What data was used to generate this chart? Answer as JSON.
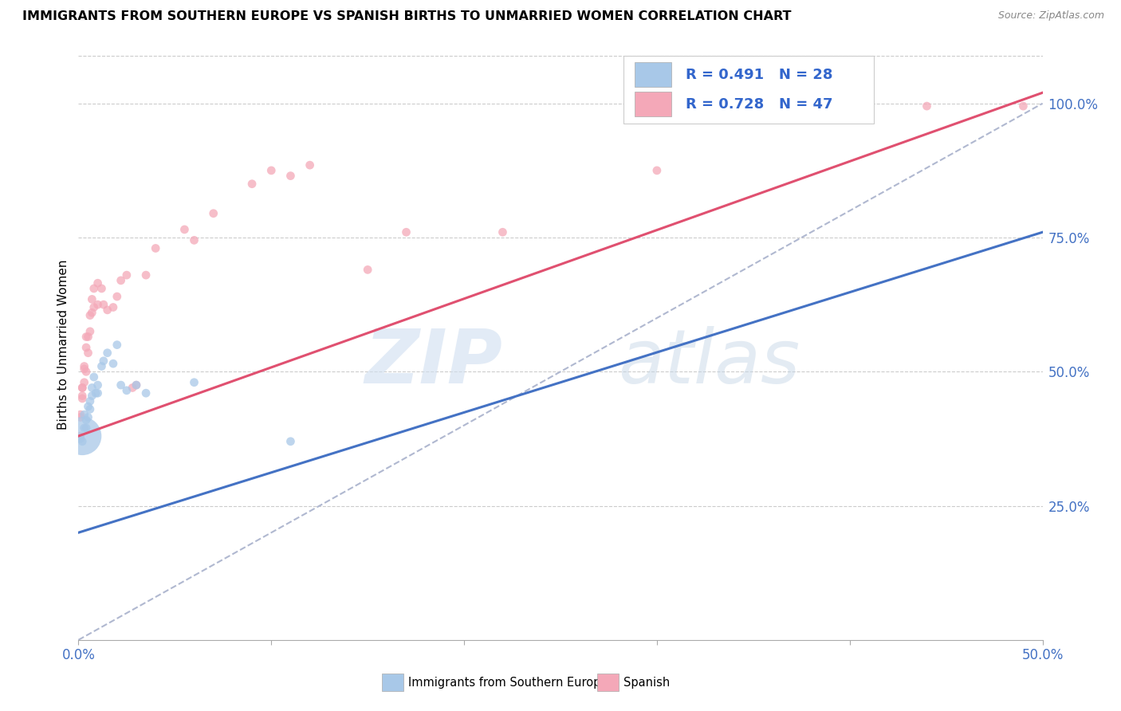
{
  "title": "IMMIGRANTS FROM SOUTHERN EUROPE VS SPANISH BIRTHS TO UNMARRIED WOMEN CORRELATION CHART",
  "source": "Source: ZipAtlas.com",
  "ylabel": "Births to Unmarried Women",
  "ylabel_ticks": [
    "25.0%",
    "50.0%",
    "75.0%",
    "100.0%"
  ],
  "ylabel_tick_vals": [
    0.25,
    0.5,
    0.75,
    1.0
  ],
  "xlim": [
    0.0,
    0.5
  ],
  "ylim": [
    0.0,
    1.1
  ],
  "legend1_R": "0.491",
  "legend1_N": "28",
  "legend2_R": "0.728",
  "legend2_N": "47",
  "blue_color": "#a8c8e8",
  "pink_color": "#f4a8b8",
  "blue_line_color": "#4472c4",
  "pink_line_color": "#e05070",
  "dashed_line_color": "#b0b8d0",
  "watermark_zip": "ZIP",
  "watermark_atlas": "atlas",
  "blue_scatter": [
    [
      0.001,
      0.375
    ],
    [
      0.002,
      0.37
    ],
    [
      0.003,
      0.395
    ],
    [
      0.003,
      0.42
    ],
    [
      0.004,
      0.41
    ],
    [
      0.004,
      0.395
    ],
    [
      0.005,
      0.415
    ],
    [
      0.005,
      0.435
    ],
    [
      0.006,
      0.43
    ],
    [
      0.006,
      0.445
    ],
    [
      0.007,
      0.455
    ],
    [
      0.007,
      0.47
    ],
    [
      0.008,
      0.49
    ],
    [
      0.009,
      0.46
    ],
    [
      0.01,
      0.475
    ],
    [
      0.01,
      0.46
    ],
    [
      0.012,
      0.51
    ],
    [
      0.013,
      0.52
    ],
    [
      0.015,
      0.535
    ],
    [
      0.018,
      0.515
    ],
    [
      0.02,
      0.55
    ],
    [
      0.022,
      0.475
    ],
    [
      0.025,
      0.465
    ],
    [
      0.03,
      0.475
    ],
    [
      0.035,
      0.46
    ],
    [
      0.06,
      0.48
    ],
    [
      0.11,
      0.37
    ],
    [
      0.002,
      0.38
    ]
  ],
  "blue_scatter_sizes": [
    60,
    60,
    60,
    60,
    60,
    60,
    60,
    60,
    60,
    60,
    60,
    60,
    60,
    60,
    60,
    60,
    60,
    60,
    60,
    60,
    60,
    60,
    60,
    60,
    60,
    60,
    60,
    1200
  ],
  "pink_scatter": [
    [
      0.001,
      0.38
    ],
    [
      0.001,
      0.415
    ],
    [
      0.001,
      0.42
    ],
    [
      0.002,
      0.45
    ],
    [
      0.002,
      0.455
    ],
    [
      0.002,
      0.47
    ],
    [
      0.002,
      0.47
    ],
    [
      0.003,
      0.48
    ],
    [
      0.003,
      0.505
    ],
    [
      0.003,
      0.51
    ],
    [
      0.004,
      0.5
    ],
    [
      0.004,
      0.545
    ],
    [
      0.004,
      0.565
    ],
    [
      0.005,
      0.535
    ],
    [
      0.005,
      0.565
    ],
    [
      0.006,
      0.575
    ],
    [
      0.006,
      0.605
    ],
    [
      0.007,
      0.61
    ],
    [
      0.007,
      0.635
    ],
    [
      0.008,
      0.62
    ],
    [
      0.008,
      0.655
    ],
    [
      0.01,
      0.625
    ],
    [
      0.01,
      0.665
    ],
    [
      0.012,
      0.655
    ],
    [
      0.013,
      0.625
    ],
    [
      0.015,
      0.615
    ],
    [
      0.018,
      0.62
    ],
    [
      0.02,
      0.64
    ],
    [
      0.022,
      0.67
    ],
    [
      0.025,
      0.68
    ],
    [
      0.028,
      0.47
    ],
    [
      0.03,
      0.475
    ],
    [
      0.035,
      0.68
    ],
    [
      0.04,
      0.73
    ],
    [
      0.055,
      0.765
    ],
    [
      0.06,
      0.745
    ],
    [
      0.07,
      0.795
    ],
    [
      0.09,
      0.85
    ],
    [
      0.1,
      0.875
    ],
    [
      0.11,
      0.865
    ],
    [
      0.12,
      0.885
    ],
    [
      0.15,
      0.69
    ],
    [
      0.17,
      0.76
    ],
    [
      0.3,
      0.875
    ],
    [
      0.44,
      0.995
    ],
    [
      0.49,
      0.995
    ],
    [
      0.22,
      0.76
    ]
  ],
  "pink_scatter_sizes": [
    60,
    60,
    60,
    60,
    60,
    60,
    60,
    60,
    60,
    60,
    60,
    60,
    60,
    60,
    60,
    60,
    60,
    60,
    60,
    60,
    60,
    60,
    60,
    60,
    60,
    60,
    60,
    60,
    60,
    60,
    60,
    60,
    60,
    60,
    60,
    60,
    60,
    60,
    60,
    60,
    60,
    60,
    60,
    60,
    60,
    60,
    60
  ],
  "blue_line_x": [
    0.0,
    0.5
  ],
  "blue_line_y": [
    0.2,
    0.76
  ],
  "pink_line_x": [
    0.0,
    0.5
  ],
  "pink_line_y": [
    0.38,
    1.02
  ],
  "dash_line_x": [
    0.0,
    0.5
  ],
  "dash_line_y": [
    0.0,
    1.0
  ]
}
